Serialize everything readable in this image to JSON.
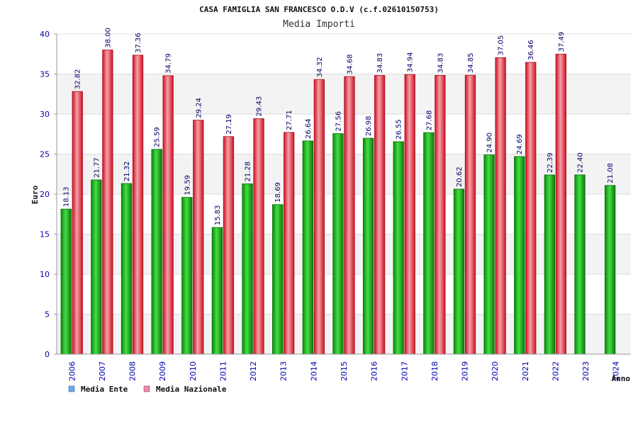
{
  "chart_data": {
    "type": "bar",
    "title": "CASA FAMIGLIA SAN FRANCESCO O.D.V (c.f.02610150753)",
    "subtitle": "Media Importi",
    "xlabel": "Anno",
    "ylabel": "Euro",
    "ylim": [
      0,
      40
    ],
    "yticks": [
      0,
      5,
      10,
      15,
      20,
      25,
      30,
      35,
      40
    ],
    "grid": true,
    "legend_position": "bottom-left",
    "categories": [
      "2006",
      "2007",
      "2008",
      "2009",
      "2010",
      "2011",
      "2012",
      "2013",
      "2014",
      "2015",
      "2016",
      "2017",
      "2018",
      "2019",
      "2020",
      "2021",
      "2022",
      "2023",
      "2024"
    ],
    "series": [
      {
        "name": "Media Ente",
        "color": "#22bb22",
        "legend_color": "#66aaee",
        "values": [
          18.13,
          21.77,
          21.32,
          25.59,
          19.59,
          15.83,
          21.28,
          18.69,
          26.64,
          27.56,
          26.98,
          26.55,
          27.68,
          20.62,
          24.9,
          24.69,
          22.39,
          22.4,
          21.08
        ],
        "labels": [
          "18.13",
          "21.77",
          "21.32",
          "25.59",
          "19.59",
          "15.83",
          "21.28",
          "18.69",
          "26.64",
          "27.56",
          "26.98",
          "26.55",
          "27.68",
          "20.62",
          "24.90",
          "24.69",
          "22.39",
          "22.40",
          "21.08"
        ]
      },
      {
        "name": "Media Nazionale",
        "color": "#ee2233",
        "legend_color": "#ee88aa",
        "values": [
          32.82,
          38.0,
          37.36,
          34.79,
          29.24,
          27.19,
          29.43,
          27.71,
          34.32,
          34.68,
          34.83,
          34.94,
          34.83,
          34.85,
          37.05,
          36.46,
          37.49,
          null,
          null
        ],
        "labels": [
          "32.82",
          "38.00",
          "37.36",
          "34.79",
          "29.24",
          "27.19",
          "29.43",
          "27.71",
          "34.32",
          "34.68",
          "34.83",
          "34.94",
          "34.83",
          "34.85",
          "37.05",
          "36.46",
          "37.49",
          "",
          ""
        ]
      }
    ]
  }
}
